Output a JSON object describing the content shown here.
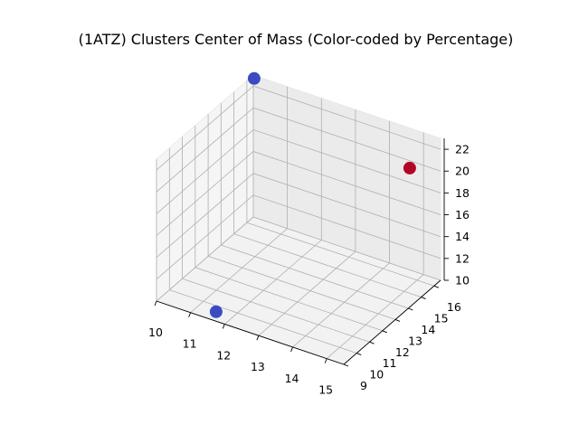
{
  "chart_data": {
    "type": "scatter",
    "title": "(1ATZ) Clusters Center of Mass (Color-coded by Percentage)",
    "xlabel": "",
    "ylabel": "",
    "zlabel": "",
    "x_ticks": [
      "10",
      "11",
      "12",
      "13",
      "14",
      "15"
    ],
    "y_ticks": [
      "9",
      "10",
      "11",
      "12",
      "13",
      "14",
      "15",
      "16"
    ],
    "z_ticks": [
      "10",
      "12",
      "14",
      "16",
      "18",
      "20",
      "22"
    ],
    "xlim": [
      10,
      15.5
    ],
    "ylim": [
      9,
      16.5
    ],
    "zlim": [
      10,
      23
    ],
    "grid": true,
    "colormap": "coolwarm",
    "points": [
      {
        "x": 10.1,
        "y": 16.3,
        "z": 23.0,
        "color": "#3b4cc0"
      },
      {
        "x": 11.6,
        "y": 9.4,
        "z": 10.3,
        "color": "#3b4cc0"
      },
      {
        "x": 15.2,
        "y": 14.9,
        "z": 21.6,
        "color": "#b40426"
      }
    ]
  }
}
